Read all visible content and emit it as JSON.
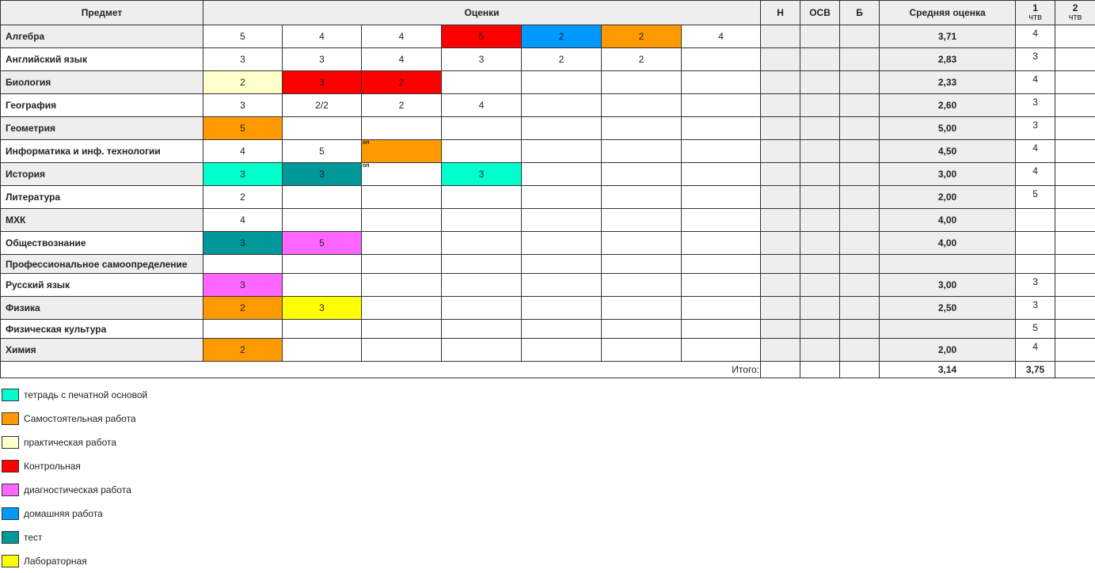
{
  "header": {
    "subject": "Предмет",
    "grades": "Оценки",
    "n": "Н",
    "osv": "ОСВ",
    "b": "Б",
    "avg": "Средняя оценка",
    "q1": "1",
    "q2": "2",
    "qtr": "чтв"
  },
  "colors": {
    "workbook": "#00ffcc",
    "independent": "#ff9900",
    "practical": "#ffffcc",
    "control": "#ff0000",
    "diagnostic": "#ff66ff",
    "homework": "#0099ff",
    "test": "#009999",
    "lab": "#ffff00"
  },
  "rows": [
    {
      "subject": "Алгебра",
      "grades": [
        {
          "v": "5"
        },
        {
          "v": "4"
        },
        {
          "v": "4"
        },
        {
          "v": "5",
          "c": "control"
        },
        {
          "v": "2",
          "c": "homework"
        },
        {
          "v": "2",
          "c": "independent"
        },
        {
          "v": "4"
        }
      ],
      "avg": "3,71",
      "q1": "4"
    },
    {
      "subject": "Английский язык",
      "grades": [
        {
          "v": "3"
        },
        {
          "v": "3"
        },
        {
          "v": "4"
        },
        {
          "v": "3"
        },
        {
          "v": "2"
        },
        {
          "v": "2"
        }
      ],
      "avg": "2,83",
      "q1": "3"
    },
    {
      "subject": "Биология",
      "grades": [
        {
          "v": "2",
          "c": "practical"
        },
        {
          "v": "3",
          "c": "control"
        },
        {
          "v": "2",
          "c": "control"
        }
      ],
      "avg": "2,33",
      "q1": "4"
    },
    {
      "subject": "География",
      "grades": [
        {
          "v": "3"
        },
        {
          "v": "2/2"
        },
        {
          "v": "2"
        },
        {
          "v": "4"
        }
      ],
      "avg": "2,60",
      "q1": "3"
    },
    {
      "subject": "Геометрия",
      "grades": [
        {
          "v": "5",
          "c": "independent"
        }
      ],
      "avg": "5,00",
      "q1": "3"
    },
    {
      "subject": "Информатика и инф. технологии",
      "grades": [
        {
          "v": "4"
        },
        {
          "v": "5"
        },
        {
          "v": "",
          "c": "independent",
          "note": "оп"
        }
      ],
      "avg": "4,50",
      "q1": "4"
    },
    {
      "subject": "История",
      "grades": [
        {
          "v": "3",
          "c": "workbook"
        },
        {
          "v": "3",
          "c": "test"
        },
        {
          "v": "",
          "note": "оп"
        },
        {
          "v": "3",
          "c": "workbook"
        }
      ],
      "avg": "3,00",
      "q1": "4"
    },
    {
      "subject": "Литература",
      "grades": [
        {
          "v": "2"
        }
      ],
      "avg": "2,00",
      "q1": "5"
    },
    {
      "subject": "МХК",
      "grades": [
        {
          "v": "4"
        }
      ],
      "avg": "4,00",
      "q1": ""
    },
    {
      "subject": "Обществознание",
      "grades": [
        {
          "v": "3",
          "c": "test"
        },
        {
          "v": "5",
          "c": "diagnostic"
        }
      ],
      "avg": "4,00",
      "q1": ""
    },
    {
      "subject": "Профессиональное самоопределение",
      "grades": [],
      "avg": "",
      "q1": "",
      "short": true
    },
    {
      "subject": "Русский язык",
      "grades": [
        {
          "v": "3",
          "c": "diagnostic"
        }
      ],
      "avg": "3,00",
      "q1": "3"
    },
    {
      "subject": "Физика",
      "grades": [
        {
          "v": "2",
          "c": "independent"
        },
        {
          "v": "3",
          "c": "lab"
        }
      ],
      "avg": "2,50",
      "q1": "3"
    },
    {
      "subject": "Физическая культура",
      "grades": [],
      "avg": "",
      "q1": "5",
      "short": true
    },
    {
      "subject": "Химия",
      "grades": [
        {
          "v": "2",
          "c": "independent"
        }
      ],
      "avg": "2,00",
      "q1": "4"
    }
  ],
  "total": {
    "label": "Итого:",
    "avg": "3,14",
    "q1": "3,75"
  },
  "legend": [
    {
      "key": "workbook",
      "label": "тетрадь с печатной основой"
    },
    {
      "key": "independent",
      "label": "Самостоятельная работа"
    },
    {
      "key": "practical",
      "label": "практическая работа"
    },
    {
      "key": "control",
      "label": "Контрольная"
    },
    {
      "key": "diagnostic",
      "label": "диагностическая работа"
    },
    {
      "key": "homework",
      "label": "домашняя работа"
    },
    {
      "key": "test",
      "label": "тест"
    },
    {
      "key": "lab",
      "label": "Лабораторная"
    }
  ]
}
